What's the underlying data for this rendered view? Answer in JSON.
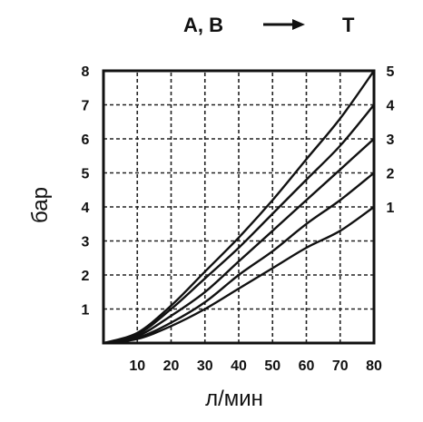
{
  "header": {
    "title_left": "A, B",
    "title_right": "T",
    "arrow_icon": "arrow-right-icon"
  },
  "chart_data": {
    "type": "line",
    "title": "A, B → T",
    "xlabel": "л/мин",
    "ylabel": "бар",
    "xlim": [
      0,
      80
    ],
    "ylim": [
      0,
      8
    ],
    "x_ticks": [
      "10",
      "20",
      "30",
      "40",
      "50",
      "60",
      "70",
      "80"
    ],
    "y_ticks": [
      "1",
      "2",
      "3",
      "4",
      "5",
      "6",
      "7",
      "8"
    ],
    "grid": true,
    "x": [
      0,
      10,
      20,
      30,
      40,
      50,
      60,
      70,
      80
    ],
    "series": [
      {
        "name": "1",
        "values": [
          0,
          0.12,
          0.5,
          1.0,
          1.6,
          2.2,
          2.8,
          3.3,
          4.0
        ]
      },
      {
        "name": "2",
        "values": [
          0,
          0.15,
          0.6,
          1.2,
          2.0,
          2.7,
          3.5,
          4.2,
          5.0
        ]
      },
      {
        "name": "3",
        "values": [
          0,
          0.2,
          0.8,
          1.5,
          2.4,
          3.3,
          4.2,
          5.1,
          6.0
        ]
      },
      {
        "name": "4",
        "values": [
          0,
          0.25,
          1.0,
          1.9,
          2.8,
          3.8,
          4.8,
          5.8,
          7.0
        ]
      },
      {
        "name": "5",
        "values": [
          0,
          0.3,
          1.1,
          2.1,
          3.1,
          4.2,
          5.4,
          6.6,
          8.0
        ]
      }
    ],
    "colors": {
      "line": "#111111",
      "grid": "#222222",
      "background": "#ffffff"
    }
  }
}
